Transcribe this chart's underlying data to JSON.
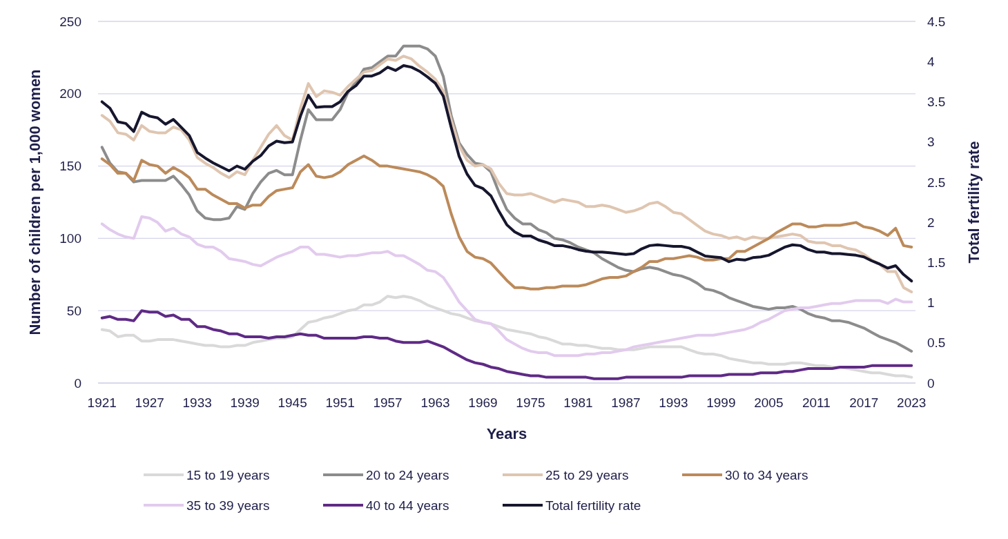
{
  "chart_data": {
    "type": "line",
    "xlabel": "Years",
    "ylabel": "Number of children per 1,000 women",
    "y2label": "Total fertility rate",
    "x": [
      1921,
      1922,
      1923,
      1924,
      1925,
      1926,
      1927,
      1928,
      1929,
      1930,
      1931,
      1932,
      1933,
      1934,
      1935,
      1936,
      1937,
      1938,
      1939,
      1940,
      1941,
      1942,
      1943,
      1944,
      1945,
      1946,
      1947,
      1948,
      1949,
      1950,
      1951,
      1952,
      1953,
      1954,
      1955,
      1956,
      1957,
      1958,
      1959,
      1960,
      1961,
      1962,
      1963,
      1964,
      1965,
      1966,
      1967,
      1968,
      1969,
      1970,
      1971,
      1972,
      1973,
      1974,
      1975,
      1976,
      1977,
      1978,
      1979,
      1980,
      1981,
      1982,
      1983,
      1984,
      1985,
      1986,
      1987,
      1988,
      1989,
      1990,
      1991,
      1992,
      1993,
      1994,
      1995,
      1996,
      1997,
      1998,
      1999,
      2000,
      2001,
      2002,
      2003,
      2004,
      2005,
      2006,
      2007,
      2008,
      2009,
      2010,
      2011,
      2012,
      2013,
      2014,
      2015,
      2016,
      2017,
      2018,
      2019,
      2020,
      2021,
      2022,
      2023
    ],
    "xlim": [
      1920.5,
      2023.5
    ],
    "xticks": [
      1921,
      1927,
      1933,
      1939,
      1945,
      1951,
      1957,
      1963,
      1969,
      1975,
      1981,
      1987,
      1993,
      1999,
      2005,
      2011,
      2017,
      2023
    ],
    "ylim": [
      0,
      250
    ],
    "yticks": [
      0,
      50,
      100,
      150,
      200,
      250
    ],
    "y2lim": [
      0,
      4.5
    ],
    "y2ticks": [
      0,
      0.5,
      1,
      1.5,
      2,
      2.5,
      3,
      3.5,
      4,
      4.5
    ],
    "grid": "y",
    "legend": "bottom",
    "marker": "none",
    "line_style": "solid",
    "series": [
      {
        "name": "15 to 19 years",
        "color": "#d9d9d9",
        "values": [
          37,
          36,
          32,
          33,
          33,
          29,
          29,
          30,
          30,
          30,
          29,
          28,
          27,
          26,
          26,
          25,
          25,
          26,
          26,
          28,
          29,
          30,
          31,
          31,
          32,
          37,
          42,
          43,
          45,
          46,
          48,
          50,
          51,
          54,
          54,
          56,
          60,
          59,
          60,
          59,
          57,
          54,
          52,
          50,
          48,
          47,
          45,
          43,
          42,
          41,
          39,
          37,
          36,
          35,
          34,
          32,
          31,
          29,
          27,
          27,
          26,
          26,
          25,
          24,
          24,
          23,
          23,
          23,
          24,
          25,
          25,
          25,
          25,
          25,
          23,
          21,
          20,
          20,
          19,
          17,
          16,
          15,
          14,
          14,
          13,
          13,
          13,
          14,
          14,
          13,
          12,
          12,
          11,
          11,
          10,
          9,
          8,
          7,
          7,
          6,
          5,
          5,
          4
        ]
      },
      {
        "name": "20 to 24 years",
        "color": "#8c8c8c",
        "values": [
          163,
          152,
          146,
          145,
          139,
          140,
          140,
          140,
          140,
          143,
          137,
          130,
          119,
          114,
          113,
          113,
          114,
          122,
          120,
          131,
          139,
          145,
          147,
          144,
          144,
          168,
          189,
          182,
          182,
          182,
          189,
          201,
          208,
          217,
          218,
          222,
          226,
          226,
          233,
          233,
          233,
          231,
          226,
          212,
          185,
          166,
          158,
          152,
          151,
          146,
          132,
          120,
          114,
          110,
          110,
          106,
          104,
          100,
          99,
          97,
          94,
          92,
          90,
          86,
          83,
          80,
          78,
          77,
          79,
          80,
          79,
          77,
          75,
          74,
          72,
          69,
          65,
          64,
          62,
          59,
          57,
          55,
          53,
          52,
          51,
          52,
          52,
          53,
          51,
          48,
          46,
          45,
          43,
          43,
          42,
          40,
          38,
          35,
          32,
          30,
          28,
          25,
          22
        ]
      },
      {
        "name": "25 to 29 years",
        "color": "#dfc5b0",
        "values": [
          185,
          181,
          173,
          172,
          168,
          178,
          174,
          173,
          173,
          177,
          175,
          168,
          156,
          152,
          149,
          145,
          142,
          146,
          144,
          154,
          163,
          172,
          178,
          171,
          168,
          190,
          207,
          198,
          202,
          201,
          199,
          205,
          210,
          215,
          216,
          220,
          224,
          223,
          226,
          224,
          219,
          215,
          210,
          202,
          182,
          164,
          154,
          150,
          151,
          148,
          138,
          131,
          130,
          130,
          131,
          129,
          127,
          125,
          127,
          126,
          125,
          122,
          122,
          123,
          122,
          120,
          118,
          119,
          121,
          124,
          125,
          122,
          118,
          117,
          113,
          109,
          105,
          103,
          102,
          100,
          101,
          99,
          101,
          100,
          100,
          101,
          102,
          103,
          102,
          98,
          97,
          97,
          95,
          95,
          93,
          92,
          89,
          85,
          82,
          77,
          77,
          66,
          63
        ]
      },
      {
        "name": "30 to 34 years",
        "color": "#bc8a5a",
        "values": [
          155,
          151,
          145,
          145,
          140,
          154,
          151,
          150,
          145,
          149,
          146,
          142,
          134,
          134,
          130,
          127,
          124,
          124,
          121,
          123,
          123,
          129,
          133,
          134,
          135,
          146,
          151,
          143,
          142,
          143,
          146,
          151,
          154,
          157,
          154,
          150,
          150,
          149,
          148,
          147,
          146,
          144,
          141,
          136,
          117,
          101,
          91,
          87,
          86,
          83,
          77,
          71,
          66,
          66,
          65,
          65,
          66,
          66,
          67,
          67,
          67,
          68,
          70,
          72,
          73,
          73,
          74,
          77,
          80,
          84,
          84,
          86,
          86,
          87,
          88,
          87,
          85,
          85,
          86,
          86,
          91,
          91,
          94,
          97,
          100,
          104,
          107,
          110,
          110,
          108,
          108,
          109,
          109,
          109,
          110,
          111,
          108,
          107,
          105,
          102,
          107,
          95,
          94
        ]
      },
      {
        "name": "35 to 39 years",
        "color": "#e2cbee",
        "values": [
          110,
          106,
          103,
          101,
          100,
          115,
          114,
          111,
          105,
          107,
          103,
          101,
          96,
          94,
          94,
          91,
          86,
          85,
          84,
          82,
          81,
          84,
          87,
          89,
          91,
          94,
          94,
          89,
          89,
          88,
          87,
          88,
          88,
          89,
          90,
          90,
          91,
          88,
          88,
          85,
          82,
          78,
          77,
          73,
          65,
          56,
          50,
          44,
          42,
          41,
          36,
          30,
          27,
          24,
          22,
          21,
          21,
          19,
          19,
          19,
          19,
          20,
          20,
          21,
          21,
          22,
          23,
          25,
          26,
          27,
          28,
          29,
          30,
          31,
          32,
          33,
          33,
          33,
          34,
          35,
          36,
          37,
          39,
          42,
          44,
          47,
          50,
          51,
          52,
          52,
          53,
          54,
          55,
          55,
          56,
          57,
          57,
          57,
          57,
          55,
          58,
          56,
          56
        ]
      },
      {
        "name": "40 to 44 years",
        "color": "#5f2a86",
        "values": [
          45,
          46,
          44,
          44,
          43,
          50,
          49,
          49,
          46,
          47,
          44,
          44,
          39,
          39,
          37,
          36,
          34,
          34,
          32,
          32,
          32,
          31,
          32,
          32,
          33,
          34,
          33,
          33,
          31,
          31,
          31,
          31,
          31,
          32,
          32,
          31,
          31,
          29,
          28,
          28,
          28,
          29,
          27,
          25,
          22,
          19,
          16,
          14,
          13,
          11,
          10,
          8,
          7,
          6,
          5,
          5,
          4,
          4,
          4,
          4,
          4,
          4,
          3,
          3,
          3,
          3,
          4,
          4,
          4,
          4,
          4,
          4,
          4,
          4,
          5,
          5,
          5,
          5,
          5,
          6,
          6,
          6,
          6,
          7,
          7,
          7,
          8,
          8,
          9,
          10,
          10,
          10,
          10,
          11,
          11,
          11,
          11,
          12,
          12,
          12,
          12,
          12,
          12
        ]
      },
      {
        "name": "Total fertility rate",
        "color": "#16162e",
        "axis": "y2",
        "values": [
          3.5,
          3.42,
          3.25,
          3.23,
          3.13,
          3.37,
          3.32,
          3.3,
          3.22,
          3.28,
          3.18,
          3.08,
          2.87,
          2.8,
          2.74,
          2.69,
          2.64,
          2.7,
          2.66,
          2.76,
          2.83,
          2.95,
          3.01,
          2.99,
          3.0,
          3.32,
          3.58,
          3.43,
          3.44,
          3.44,
          3.5,
          3.63,
          3.7,
          3.82,
          3.82,
          3.86,
          3.93,
          3.89,
          3.95,
          3.93,
          3.88,
          3.81,
          3.73,
          3.57,
          3.18,
          2.82,
          2.6,
          2.46,
          2.42,
          2.33,
          2.14,
          1.97,
          1.88,
          1.83,
          1.83,
          1.78,
          1.75,
          1.71,
          1.71,
          1.69,
          1.66,
          1.64,
          1.63,
          1.63,
          1.62,
          1.61,
          1.6,
          1.61,
          1.67,
          1.71,
          1.72,
          1.71,
          1.7,
          1.7,
          1.68,
          1.63,
          1.58,
          1.57,
          1.56,
          1.51,
          1.54,
          1.53,
          1.56,
          1.57,
          1.59,
          1.64,
          1.69,
          1.72,
          1.71,
          1.66,
          1.63,
          1.63,
          1.61,
          1.61,
          1.6,
          1.59,
          1.57,
          1.52,
          1.48,
          1.43,
          1.46,
          1.35,
          1.27
        ]
      }
    ]
  }
}
